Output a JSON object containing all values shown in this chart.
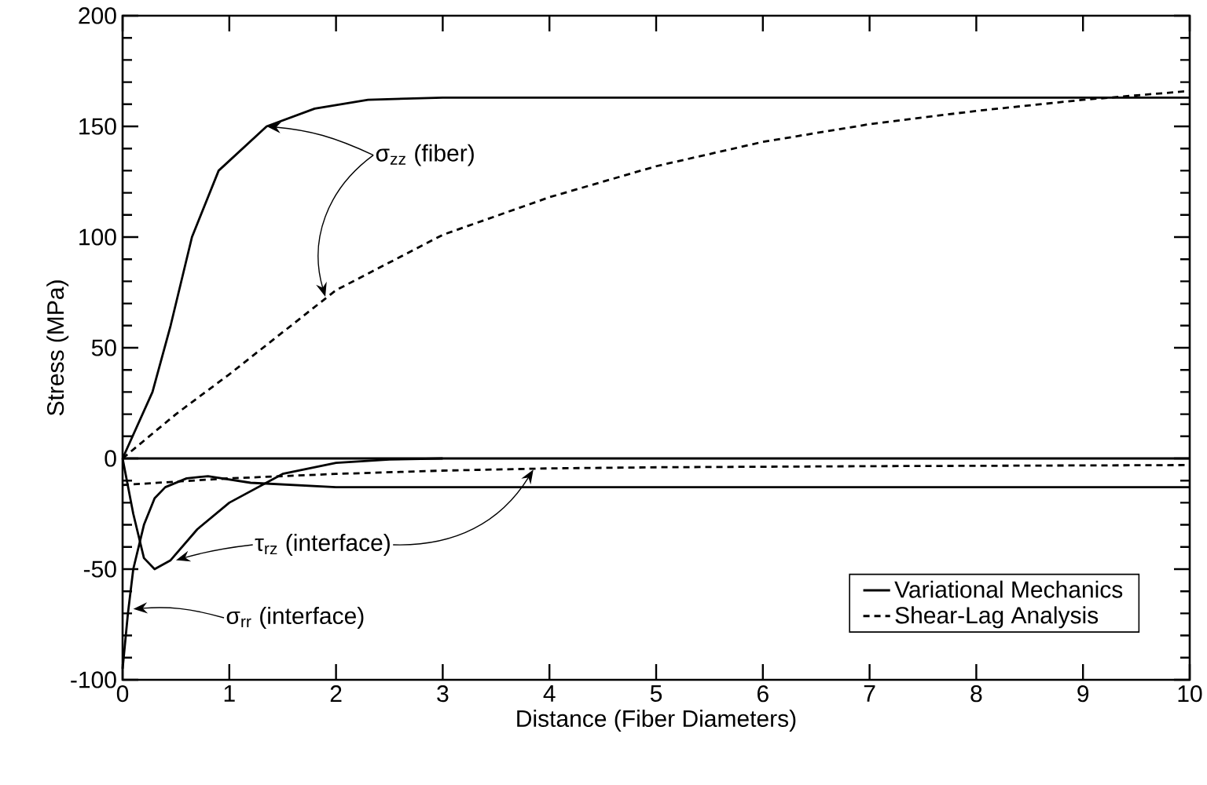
{
  "chart_data": {
    "type": "line",
    "xlabel": "Distance (Fiber Diameters)",
    "ylabel": "Stress (MPa)",
    "xlim": [
      0,
      10
    ],
    "ylim": [
      -100,
      200
    ],
    "xticks": [
      0,
      1,
      2,
      3,
      4,
      5,
      6,
      7,
      8,
      9,
      10
    ],
    "yticks": [
      -100,
      -50,
      0,
      50,
      100,
      150,
      200
    ],
    "grid": false,
    "legend": "bottom right",
    "marker": "none",
    "series": [
      {
        "name": "Variational Mechanics",
        "color": "#000000",
        "line_style": "solid",
        "x": [
          0,
          0.28,
          0.45,
          0.65,
          0.9,
          1.35,
          1.8,
          2.3,
          3,
          10
        ],
        "values": [
          0,
          30,
          60,
          100,
          130,
          150,
          158,
          162,
          163,
          163
        ]
      },
      {
        "name": "Shear-Lag Analysis",
        "color": "#000000",
        "line_style": "dashed",
        "x": [
          0,
          0.25,
          0.5,
          1,
          1.5,
          2,
          3,
          4,
          5,
          6,
          7,
          8,
          9,
          10
        ],
        "values": [
          0,
          10,
          20,
          38,
          57,
          76,
          101,
          118,
          132,
          143,
          151,
          157,
          162,
          166
        ]
      },
      {
        "color": "#000000",
        "line_style": "solid",
        "x": [
          0,
          0.1,
          0.2,
          0.3,
          0.45,
          0.7,
          1,
          1.5,
          2,
          2.5,
          3
        ],
        "values": [
          0,
          -25,
          -45,
          -50,
          -46,
          -32,
          -20,
          -7,
          -2,
          -0.5,
          0
        ]
      },
      {
        "color": "#000000",
        "line_style": "solid",
        "x": [
          0,
          0.05,
          0.1,
          0.2,
          0.3,
          0.4,
          0.6,
          0.8,
          1.2,
          2,
          10
        ],
        "values": [
          -95,
          -70,
          -50,
          -30,
          -18,
          -13,
          -9,
          -8,
          -11,
          -13,
          -13
        ]
      },
      {
        "color": "#000000",
        "line_style": "dashed",
        "x": [
          0,
          1,
          2,
          3,
          4,
          5,
          7,
          10
        ],
        "values": [
          -12,
          -9,
          -7,
          -5.5,
          -4.5,
          -4,
          -3.5,
          -3
        ]
      }
    ],
    "ref_lines": [
      {
        "axis": "y",
        "value": 0,
        "color": "#000000",
        "line_style": "solid"
      }
    ],
    "annotations": [
      {
        "text": "σ$_{zz}$ (fiber)",
        "x": 1.35,
        "y": 150
      },
      {
        "text": "τ$_{rz}$ (interface)",
        "x": 0.5,
        "y": -46
      },
      {
        "text": "σ$_{rr}$ (interface)",
        "x": 0.1,
        "y": -68
      }
    ]
  }
}
